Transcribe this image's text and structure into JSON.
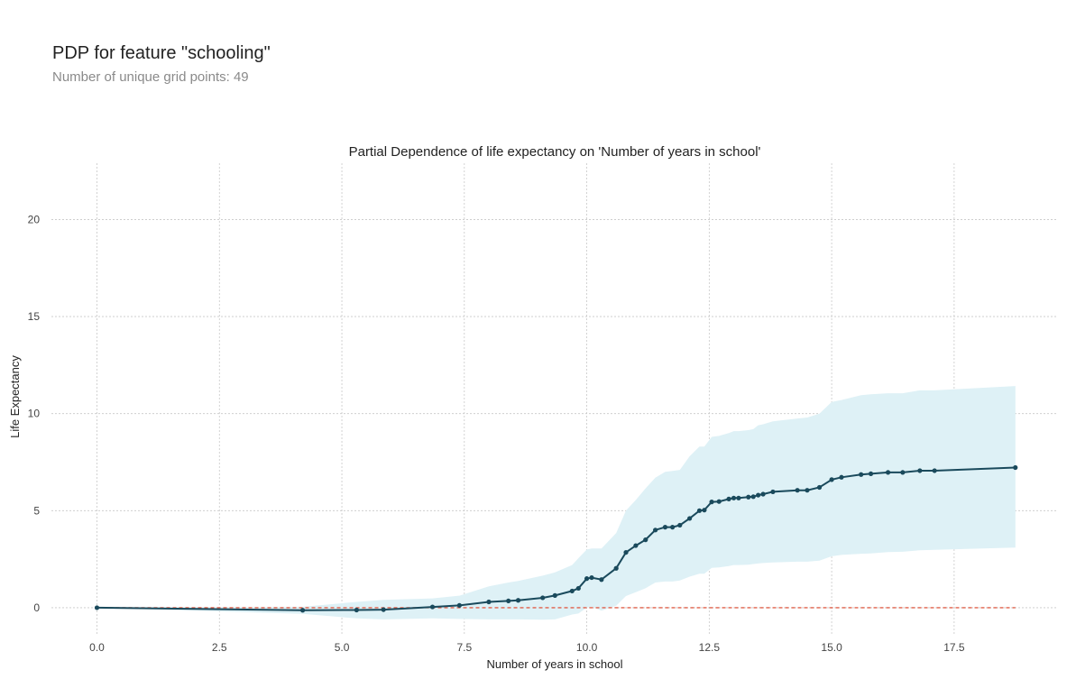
{
  "header": {
    "title": "PDP for feature \"schooling\"",
    "subtitle": "Number of unique grid points: 49"
  },
  "chart_data": {
    "type": "line",
    "title": "Partial Dependence of life expectancy on 'Number of years in school'",
    "xlabel": "Number of years in school",
    "ylabel": "Life Expectancy",
    "xlim": [
      -0.93,
      19.62
    ],
    "ylim": [
      -1.35,
      22.9
    ],
    "xticks": [
      0.0,
      2.5,
      5.0,
      7.5,
      10.0,
      12.5,
      15.0,
      17.5
    ],
    "xtick_labels": [
      "0.0",
      "2.5",
      "5.0",
      "7.5",
      "10.0",
      "12.5",
      "15.0",
      "17.5"
    ],
    "yticks": [
      0,
      5,
      10,
      15,
      20
    ],
    "ytick_labels": [
      "0",
      "5",
      "10",
      "15",
      "20"
    ],
    "grid": true,
    "colors": {
      "line": "#1a4a5c",
      "band": "#def1f6",
      "baseline": "#e0604a",
      "grid": "#c8c8c8"
    },
    "series": [
      {
        "x": [
          0.0,
          4.2,
          5.3,
          5.85,
          6.85,
          7.4,
          8.0,
          8.4,
          8.6,
          9.1,
          9.35,
          9.7,
          9.83,
          10.0,
          10.1,
          10.3,
          10.6,
          10.8,
          11.0,
          11.2,
          11.4,
          11.6,
          11.75,
          11.9,
          12.1,
          12.3,
          12.4,
          12.55,
          12.7,
          12.9,
          13.0,
          13.1,
          13.3,
          13.4,
          13.5,
          13.6,
          13.8,
          14.3,
          14.5,
          14.75,
          15.0,
          15.2,
          15.6,
          15.8,
          16.15,
          16.45,
          16.8,
          17.1,
          18.75
        ],
        "y": [
          0.0,
          -0.13,
          -0.12,
          -0.1,
          0.04,
          0.12,
          0.3,
          0.35,
          0.38,
          0.51,
          0.63,
          0.86,
          1.0,
          1.5,
          1.55,
          1.45,
          2.03,
          2.85,
          3.2,
          3.5,
          4.0,
          4.15,
          4.15,
          4.25,
          4.6,
          5.0,
          5.03,
          5.45,
          5.47,
          5.6,
          5.65,
          5.65,
          5.7,
          5.72,
          5.8,
          5.85,
          5.97,
          6.05,
          6.05,
          6.2,
          6.6,
          6.72,
          6.86,
          6.9,
          6.97,
          6.97,
          7.06,
          7.06,
          7.22
        ]
      }
    ],
    "band_upper_y": [
      0.0,
      0.05,
      0.3,
      0.4,
      0.48,
      0.62,
      1.1,
      1.3,
      1.38,
      1.65,
      1.82,
      2.2,
      2.55,
      3.0,
      3.05,
      3.05,
      3.85,
      5.0,
      5.55,
      6.15,
      6.7,
      7.0,
      7.05,
      7.1,
      7.8,
      8.3,
      8.3,
      8.8,
      8.85,
      9.0,
      9.1,
      9.1,
      9.15,
      9.2,
      9.4,
      9.45,
      9.6,
      9.75,
      9.8,
      10.0,
      10.6,
      10.7,
      10.95,
      11.0,
      11.05,
      11.05,
      11.2,
      11.2,
      11.42
    ],
    "band_lower_y": [
      0.0,
      -0.32,
      -0.55,
      -0.6,
      -0.55,
      -0.58,
      -0.6,
      -0.6,
      -0.6,
      -0.62,
      -0.6,
      -0.35,
      -0.3,
      0.0,
      0.05,
      -0.15,
      0.1,
      0.6,
      0.8,
      1.0,
      1.3,
      1.35,
      1.35,
      1.4,
      1.6,
      1.75,
      1.75,
      2.05,
      2.08,
      2.15,
      2.2,
      2.2,
      2.22,
      2.25,
      2.28,
      2.3,
      2.33,
      2.37,
      2.37,
      2.42,
      2.65,
      2.72,
      2.78,
      2.8,
      2.87,
      2.88,
      2.96,
      2.98,
      3.1
    ],
    "baseline": 0
  }
}
